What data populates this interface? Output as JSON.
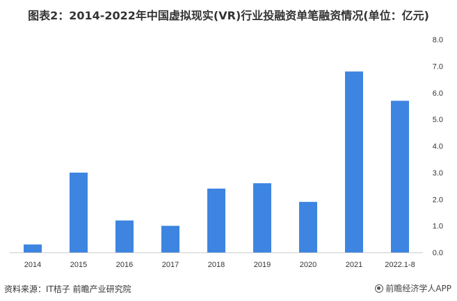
{
  "title": "图表2：2014-2022年中国虚拟现实(VR)行业投融资单笔融资情况(单位：亿元)",
  "footer": {
    "source": "资料来源：IT桔子 前瞻产业研究院",
    "brand": "前瞻经济学人APP"
  },
  "colors": {
    "bar": "#3d85e0",
    "axis": "#cccccc",
    "text": "#333333"
  },
  "chart_data": {
    "type": "bar",
    "categories": [
      "2014",
      "2015",
      "2016",
      "2017",
      "2018",
      "2019",
      "2020",
      "2021",
      "2022.1-8"
    ],
    "values": [
      0.3,
      3.0,
      1.2,
      1.0,
      2.4,
      2.6,
      1.9,
      6.8,
      5.7
    ],
    "ylim": [
      0,
      8
    ],
    "yticks": [
      "0.0",
      "1.0",
      "2.0",
      "3.0",
      "4.0",
      "5.0",
      "6.0",
      "7.0",
      "8.0"
    ],
    "y_axis_position": "right",
    "grid": false,
    "legend": "none",
    "title": "图表2：2014-2022年中国虚拟现实(VR)行业投融资单笔融资情况(单位：亿元)",
    "xlabel": "",
    "ylabel": ""
  }
}
